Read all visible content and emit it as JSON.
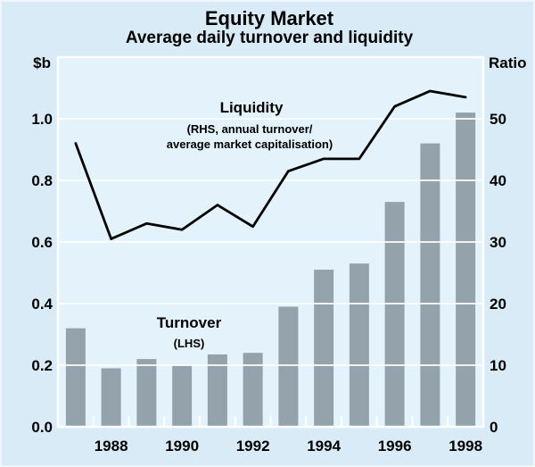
{
  "chart_data": {
    "type": "combo-bar-line",
    "title": "Equity Market",
    "subtitle": "Average daily turnover and liquidity",
    "left_axis": {
      "unit": "$b",
      "min": 0,
      "max": 1.2,
      "tick_interval": 0.2,
      "tick_labels": [
        "0.0",
        "0.2",
        "0.4",
        "0.6",
        "0.8",
        "1.0"
      ]
    },
    "right_axis": {
      "unit": "Ratio",
      "min": 0,
      "max": 60,
      "tick_interval": 10,
      "tick_labels": [
        "0",
        "10",
        "20",
        "30",
        "40",
        "50"
      ]
    },
    "x": [
      1987,
      1988,
      1989,
      1990,
      1991,
      1992,
      1993,
      1994,
      1995,
      1996,
      1997,
      1998
    ],
    "x_tick_labels": [
      "1988",
      "1990",
      "1992",
      "1994",
      "1996",
      "1998"
    ],
    "series": [
      {
        "name": "Turnover",
        "type": "bar",
        "axis": "left",
        "values": [
          0.32,
          0.19,
          0.22,
          0.2,
          0.235,
          0.24,
          0.39,
          0.51,
          0.53,
          0.73,
          0.92,
          1.02
        ]
      },
      {
        "name": "Liquidity",
        "type": "line",
        "axis": "right",
        "values": [
          46,
          30.5,
          33,
          32,
          36,
          32.5,
          41.5,
          43.5,
          43.5,
          52,
          54.5,
          53.5
        ]
      }
    ],
    "annotations": {
      "liquidity_label": "Liquidity",
      "liquidity_sub1": "(RHS, annual turnover/",
      "liquidity_sub2": "average market capitalisation)",
      "turnover_label": "Turnover",
      "turnover_sub": "(LHS)"
    },
    "layout_hints": {
      "grid": "horizontal white lines at every tick, drawn over bars",
      "legend": "inline text annotations",
      "background": "light blue"
    },
    "colors": {
      "background": "#d9ebf7",
      "plot_background": "#e4f2fb",
      "bar": "#94a2ac",
      "line": "#000000",
      "grid": "#ffffff",
      "text": "#000000"
    }
  }
}
